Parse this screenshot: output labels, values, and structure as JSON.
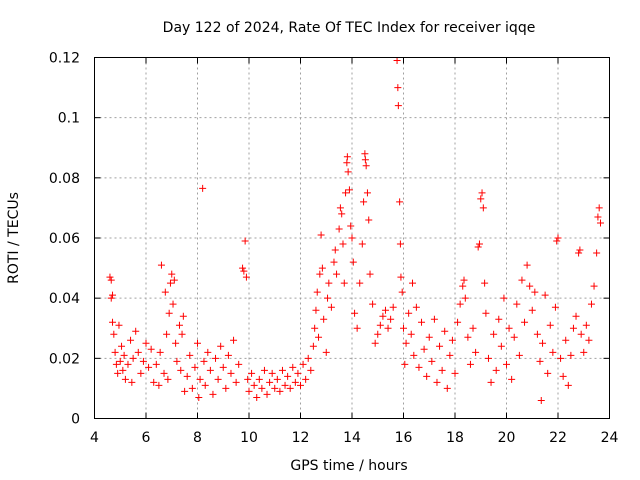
{
  "chart_data": {
    "type": "scatter",
    "title": "Day 122 of 2024, Rate Of TEC Index for receiver iqqe",
    "xlabel": "GPS time / hours",
    "ylabel": "ROTI / TECUs",
    "xlim": [
      4,
      24
    ],
    "ylim": [
      0,
      0.12
    ],
    "xticks": [
      4,
      6,
      8,
      10,
      12,
      14,
      16,
      18,
      20,
      22,
      24
    ],
    "xtick_labels": [
      "4",
      "6",
      "8",
      "10",
      "12",
      "14",
      "16",
      "18",
      "20",
      "22",
      "24"
    ],
    "yticks": [
      0,
      0.02,
      0.04,
      0.06,
      0.08,
      0.1,
      0.12
    ],
    "ytick_labels": [
      "0",
      "0.02",
      "0.04",
      "0.06",
      "0.08",
      "0.1",
      "0.12"
    ],
    "grid": true,
    "marker": "plus",
    "series": [
      {
        "name": "ROTI",
        "color": "#ff0000",
        "points": [
          [
            4.6,
            0.047
          ],
          [
            4.65,
            0.046
          ],
          [
            4.65,
            0.04
          ],
          [
            4.7,
            0.041
          ],
          [
            4.7,
            0.032
          ],
          [
            4.75,
            0.028
          ],
          [
            4.8,
            0.022
          ],
          [
            4.85,
            0.018
          ],
          [
            4.9,
            0.015
          ],
          [
            4.95,
            0.031
          ],
          [
            5.0,
            0.019
          ],
          [
            5.05,
            0.024
          ],
          [
            5.1,
            0.016
          ],
          [
            5.15,
            0.021
          ],
          [
            5.2,
            0.013
          ],
          [
            5.3,
            0.018
          ],
          [
            5.4,
            0.026
          ],
          [
            5.45,
            0.012
          ],
          [
            5.5,
            0.02
          ],
          [
            5.6,
            0.029
          ],
          [
            5.7,
            0.022
          ],
          [
            5.8,
            0.015
          ],
          [
            5.9,
            0.019
          ],
          [
            6.0,
            0.025
          ],
          [
            6.1,
            0.017
          ],
          [
            6.2,
            0.023
          ],
          [
            6.3,
            0.012
          ],
          [
            6.4,
            0.018
          ],
          [
            6.5,
            0.011
          ],
          [
            6.55,
            0.022
          ],
          [
            6.6,
            0.051
          ],
          [
            6.7,
            0.015
          ],
          [
            6.75,
            0.042
          ],
          [
            6.8,
            0.028
          ],
          [
            6.85,
            0.013
          ],
          [
            6.9,
            0.035
          ],
          [
            6.95,
            0.045
          ],
          [
            7.0,
            0.048
          ],
          [
            7.05,
            0.038
          ],
          [
            7.1,
            0.046
          ],
          [
            7.15,
            0.025
          ],
          [
            7.2,
            0.019
          ],
          [
            7.3,
            0.031
          ],
          [
            7.35,
            0.016
          ],
          [
            7.4,
            0.028
          ],
          [
            7.45,
            0.034
          ],
          [
            7.5,
            0.009
          ],
          [
            7.6,
            0.014
          ],
          [
            7.7,
            0.021
          ],
          [
            7.8,
            0.01
          ],
          [
            7.9,
            0.017
          ],
          [
            8.0,
            0.025
          ],
          [
            8.05,
            0.007
          ],
          [
            8.1,
            0.013
          ],
          [
            8.2,
            0.0765
          ],
          [
            8.25,
            0.019
          ],
          [
            8.3,
            0.011
          ],
          [
            8.4,
            0.022
          ],
          [
            8.5,
            0.016
          ],
          [
            8.6,
            0.008
          ],
          [
            8.7,
            0.02
          ],
          [
            8.8,
            0.013
          ],
          [
            8.9,
            0.024
          ],
          [
            9.0,
            0.017
          ],
          [
            9.1,
            0.01
          ],
          [
            9.2,
            0.021
          ],
          [
            9.3,
            0.015
          ],
          [
            9.4,
            0.026
          ],
          [
            9.5,
            0.012
          ],
          [
            9.6,
            0.018
          ],
          [
            9.75,
            0.05
          ],
          [
            9.8,
            0.049
          ],
          [
            9.85,
            0.059
          ],
          [
            9.9,
            0.047
          ],
          [
            9.95,
            0.013
          ],
          [
            10.0,
            0.009
          ],
          [
            10.1,
            0.015
          ],
          [
            10.2,
            0.011
          ],
          [
            10.3,
            0.007
          ],
          [
            10.4,
            0.013
          ],
          [
            10.5,
            0.01
          ],
          [
            10.6,
            0.016
          ],
          [
            10.7,
            0.008
          ],
          [
            10.8,
            0.012
          ],
          [
            10.9,
            0.015
          ],
          [
            11.0,
            0.01
          ],
          [
            11.1,
            0.013
          ],
          [
            11.2,
            0.009
          ],
          [
            11.3,
            0.016
          ],
          [
            11.4,
            0.011
          ],
          [
            11.5,
            0.014
          ],
          [
            11.6,
            0.01
          ],
          [
            11.7,
            0.017
          ],
          [
            11.8,
            0.012
          ],
          [
            11.9,
            0.015
          ],
          [
            12.0,
            0.011
          ],
          [
            12.1,
            0.018
          ],
          [
            12.2,
            0.013
          ],
          [
            12.3,
            0.02
          ],
          [
            12.4,
            0.016
          ],
          [
            12.5,
            0.024
          ],
          [
            12.55,
            0.03
          ],
          [
            12.6,
            0.036
          ],
          [
            12.65,
            0.042
          ],
          [
            12.7,
            0.027
          ],
          [
            12.75,
            0.048
          ],
          [
            12.8,
            0.061
          ],
          [
            12.85,
            0.05
          ],
          [
            12.9,
            0.033
          ],
          [
            13.0,
            0.022
          ],
          [
            13.05,
            0.04
          ],
          [
            13.1,
            0.045
          ],
          [
            13.2,
            0.037
          ],
          [
            13.3,
            0.052
          ],
          [
            13.35,
            0.056
          ],
          [
            13.4,
            0.048
          ],
          [
            13.5,
            0.063
          ],
          [
            13.55,
            0.07
          ],
          [
            13.6,
            0.068
          ],
          [
            13.65,
            0.058
          ],
          [
            13.7,
            0.045
          ],
          [
            13.75,
            0.075
          ],
          [
            13.8,
            0.085
          ],
          [
            13.82,
            0.087
          ],
          [
            13.85,
            0.082
          ],
          [
            13.9,
            0.076
          ],
          [
            13.95,
            0.064
          ],
          [
            14.0,
            0.06
          ],
          [
            14.05,
            0.052
          ],
          [
            14.1,
            0.035
          ],
          [
            14.2,
            0.03
          ],
          [
            14.3,
            0.045
          ],
          [
            14.4,
            0.058
          ],
          [
            14.45,
            0.072
          ],
          [
            14.5,
            0.088
          ],
          [
            14.52,
            0.086
          ],
          [
            14.55,
            0.084
          ],
          [
            14.6,
            0.075
          ],
          [
            14.65,
            0.066
          ],
          [
            14.7,
            0.048
          ],
          [
            14.8,
            0.038
          ],
          [
            14.9,
            0.025
          ],
          [
            15.0,
            0.028
          ],
          [
            15.1,
            0.031
          ],
          [
            15.2,
            0.034
          ],
          [
            15.3,
            0.036
          ],
          [
            15.4,
            0.03
          ],
          [
            15.5,
            0.033
          ],
          [
            15.6,
            0.037
          ],
          [
            15.75,
            0.119
          ],
          [
            15.78,
            0.11
          ],
          [
            15.8,
            0.104
          ],
          [
            15.85,
            0.072
          ],
          [
            15.88,
            0.058
          ],
          [
            15.9,
            0.047
          ],
          [
            15.95,
            0.042
          ],
          [
            16.0,
            0.03
          ],
          [
            16.05,
            0.018
          ],
          [
            16.1,
            0.025
          ],
          [
            16.2,
            0.035
          ],
          [
            16.3,
            0.028
          ],
          [
            16.35,
            0.045
          ],
          [
            16.4,
            0.021
          ],
          [
            16.5,
            0.037
          ],
          [
            16.6,
            0.017
          ],
          [
            16.7,
            0.032
          ],
          [
            16.8,
            0.023
          ],
          [
            16.9,
            0.014
          ],
          [
            17.0,
            0.027
          ],
          [
            17.1,
            0.019
          ],
          [
            17.2,
            0.033
          ],
          [
            17.3,
            0.012
          ],
          [
            17.4,
            0.024
          ],
          [
            17.5,
            0.016
          ],
          [
            17.6,
            0.029
          ],
          [
            17.7,
            0.01
          ],
          [
            17.8,
            0.021
          ],
          [
            17.9,
            0.026
          ],
          [
            18.0,
            0.015
          ],
          [
            18.1,
            0.032
          ],
          [
            18.2,
            0.038
          ],
          [
            18.3,
            0.044
          ],
          [
            18.35,
            0.046
          ],
          [
            18.4,
            0.04
          ],
          [
            18.5,
            0.027
          ],
          [
            18.6,
            0.018
          ],
          [
            18.7,
            0.03
          ],
          [
            18.8,
            0.022
          ],
          [
            18.9,
            0.057
          ],
          [
            18.95,
            0.058
          ],
          [
            19.0,
            0.073
          ],
          [
            19.05,
            0.075
          ],
          [
            19.1,
            0.07
          ],
          [
            19.15,
            0.045
          ],
          [
            19.2,
            0.035
          ],
          [
            19.3,
            0.02
          ],
          [
            19.4,
            0.012
          ],
          [
            19.5,
            0.028
          ],
          [
            19.6,
            0.016
          ],
          [
            19.7,
            0.033
          ],
          [
            19.8,
            0.024
          ],
          [
            19.9,
            0.04
          ],
          [
            20.0,
            0.018
          ],
          [
            20.1,
            0.03
          ],
          [
            20.2,
            0.013
          ],
          [
            20.3,
            0.027
          ],
          [
            20.4,
            0.038
          ],
          [
            20.5,
            0.021
          ],
          [
            20.6,
            0.046
          ],
          [
            20.7,
            0.032
          ],
          [
            20.8,
            0.051
          ],
          [
            20.9,
            0.044
          ],
          [
            21.0,
            0.036
          ],
          [
            21.1,
            0.042
          ],
          [
            21.2,
            0.028
          ],
          [
            21.3,
            0.019
          ],
          [
            21.35,
            0.006
          ],
          [
            21.4,
            0.025
          ],
          [
            21.5,
            0.041
          ],
          [
            21.6,
            0.015
          ],
          [
            21.7,
            0.031
          ],
          [
            21.8,
            0.022
          ],
          [
            21.9,
            0.037
          ],
          [
            21.95,
            0.059
          ],
          [
            22.0,
            0.06
          ],
          [
            22.1,
            0.02
          ],
          [
            22.2,
            0.014
          ],
          [
            22.3,
            0.026
          ],
          [
            22.4,
            0.011
          ],
          [
            22.5,
            0.021
          ],
          [
            22.6,
            0.03
          ],
          [
            22.7,
            0.034
          ],
          [
            22.8,
            0.055
          ],
          [
            22.85,
            0.056
          ],
          [
            22.9,
            0.028
          ],
          [
            23.0,
            0.022
          ],
          [
            23.1,
            0.031
          ],
          [
            23.2,
            0.026
          ],
          [
            23.3,
            0.038
          ],
          [
            23.4,
            0.044
          ],
          [
            23.5,
            0.055
          ],
          [
            23.55,
            0.067
          ],
          [
            23.6,
            0.07
          ],
          [
            23.65,
            0.065
          ]
        ]
      }
    ]
  }
}
